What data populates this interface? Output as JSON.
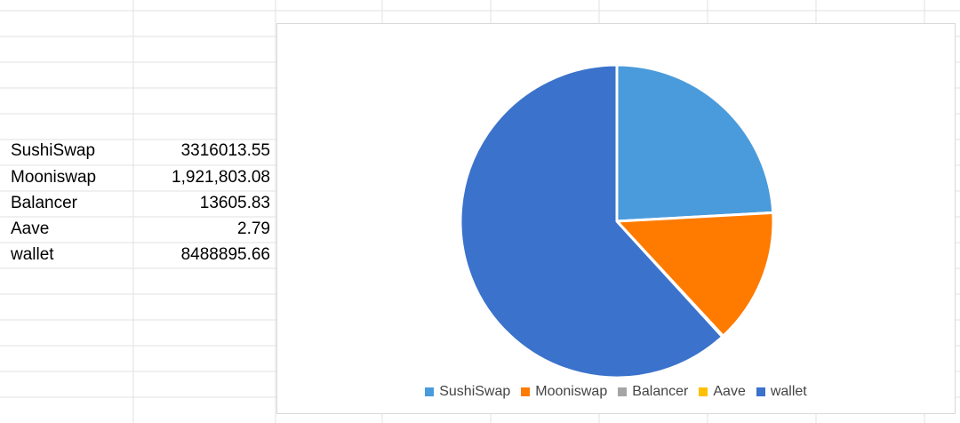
{
  "sheet": {
    "rows": [
      {
        "label": "SushiSwap",
        "value": "3316013.55"
      },
      {
        "label": "Mooniswap",
        "value": "1,921,803.08"
      },
      {
        "label": "Balancer",
        "value": "13605.83"
      },
      {
        "label": "Aave",
        "value": "2.79"
      },
      {
        "label": "wallet",
        "value": "8488895.66"
      }
    ]
  },
  "chart_data": {
    "type": "pie",
    "title": "",
    "categories": [
      "SushiSwap",
      "Mooniswap",
      "Balancer",
      "Aave",
      "wallet"
    ],
    "values": [
      3316013.55,
      1921803.08,
      13605.83,
      2.79,
      8488895.66
    ],
    "colors": [
      "#4a9bdb",
      "#ff7b00",
      "#a5a5a5",
      "#ffc000",
      "#3b72cb"
    ],
    "legend": "bottom"
  }
}
